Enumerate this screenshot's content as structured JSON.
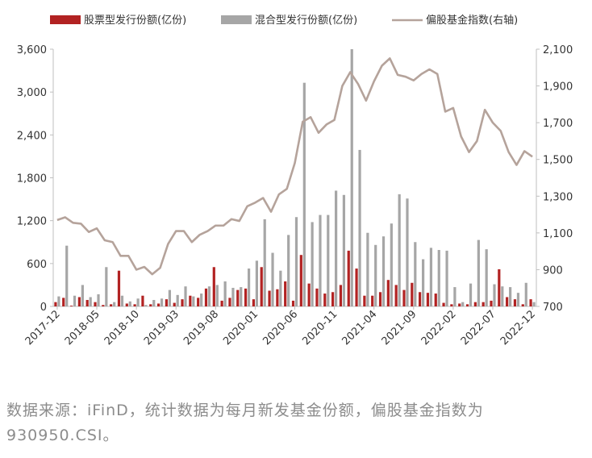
{
  "chart_data": {
    "type": "bar",
    "legend": {
      "position": "top",
      "entries": [
        {
          "name": "股票型发行份额(亿份)",
          "color": "#b22222",
          "kind": "bar"
        },
        {
          "name": "混合型发行份额(亿份)",
          "color": "#a6a6a6",
          "kind": "bar"
        },
        {
          "name": "偏股基金指数(右轴)",
          "color": "#b5a39b",
          "kind": "line"
        }
      ]
    },
    "y_left": {
      "min": 0,
      "max": 3600,
      "ticks": [
        "0",
        "600",
        "1,200",
        "1,800",
        "2,400",
        "3,000",
        "3,600"
      ]
    },
    "y_right": {
      "min": 700,
      "max": 2100,
      "ticks": [
        "700",
        "900",
        "1,100",
        "1,300",
        "1,500",
        "1,700",
        "1,900",
        "2,100"
      ]
    },
    "x_tick_labels": [
      {
        "index": 0,
        "label": "2017-12"
      },
      {
        "index": 5,
        "label": "2018-05"
      },
      {
        "index": 10,
        "label": "2018-10"
      },
      {
        "index": 15,
        "label": "2019-03"
      },
      {
        "index": 20,
        "label": "2019-08"
      },
      {
        "index": 25,
        "label": "2020-01"
      },
      {
        "index": 30,
        "label": "2020-06"
      },
      {
        "index": 35,
        "label": "2020-11"
      },
      {
        "index": 40,
        "label": "2021-04"
      },
      {
        "index": 45,
        "label": "2021-09"
      },
      {
        "index": 50,
        "label": "2022-02"
      },
      {
        "index": 55,
        "label": "2022-07"
      },
      {
        "index": 60,
        "label": "2022-12"
      }
    ],
    "categories": [
      "2017-12",
      "2018-01",
      "2018-02",
      "2018-03",
      "2018-04",
      "2018-05",
      "2018-06",
      "2018-07",
      "2018-08",
      "2018-09",
      "2018-10",
      "2018-11",
      "2018-12",
      "2019-01",
      "2019-02",
      "2019-03",
      "2019-04",
      "2019-05",
      "2019-06",
      "2019-07",
      "2019-08",
      "2019-09",
      "2019-10",
      "2019-11",
      "2019-12",
      "2020-01",
      "2020-02",
      "2020-03",
      "2020-04",
      "2020-05",
      "2020-06",
      "2020-07",
      "2020-08",
      "2020-09",
      "2020-10",
      "2020-11",
      "2020-12",
      "2021-01",
      "2021-02",
      "2021-03",
      "2021-04",
      "2021-05",
      "2021-06",
      "2021-07",
      "2021-08",
      "2021-09",
      "2021-10",
      "2021-11",
      "2021-12",
      "2022-01",
      "2022-02",
      "2022-03",
      "2022-04",
      "2022-05",
      "2022-06",
      "2022-07",
      "2022-08",
      "2022-09",
      "2022-10",
      "2022-11",
      "2022-12"
    ],
    "series": [
      {
        "name": "股票型发行份额(亿份)",
        "axis": "left",
        "values": [
          60,
          120,
          10,
          130,
          90,
          60,
          20,
          30,
          500,
          40,
          30,
          150,
          30,
          40,
          100,
          50,
          100,
          150,
          120,
          250,
          550,
          80,
          120,
          230,
          250,
          100,
          550,
          220,
          240,
          350,
          80,
          720,
          320,
          250,
          180,
          200,
          300,
          780,
          530,
          150,
          150,
          200,
          370,
          300,
          230,
          330,
          200,
          190,
          180,
          50,
          30,
          40,
          30,
          60,
          60,
          80,
          520,
          130,
          100,
          30,
          100
        ]
      },
      {
        "name": "混合型发行份额(亿份)",
        "axis": "left",
        "values": [
          140,
          850,
          150,
          300,
          130,
          170,
          550,
          60,
          150,
          70,
          110,
          20,
          90,
          110,
          230,
          160,
          280,
          140,
          180,
          280,
          300,
          350,
          260,
          270,
          530,
          640,
          1220,
          750,
          500,
          1000,
          1250,
          3130,
          1180,
          1280,
          1280,
          1620,
          1560,
          3600,
          2190,
          1030,
          860,
          980,
          1160,
          1570,
          1510,
          900,
          660,
          820,
          790,
          780,
          270,
          60,
          320,
          930,
          800,
          310,
          280,
          270,
          190,
          330,
          60
        ]
      },
      {
        "name": "偏股基金指数(右轴)",
        "axis": "right",
        "values": [
          1170,
          1185,
          1155,
          1150,
          1105,
          1125,
          1060,
          1050,
          975,
          975,
          900,
          915,
          875,
          910,
          1040,
          1110,
          1110,
          1050,
          1090,
          1110,
          1140,
          1140,
          1175,
          1165,
          1245,
          1265,
          1290,
          1215,
          1310,
          1340,
          1480,
          1705,
          1730,
          1645,
          1690,
          1715,
          1900,
          1975,
          1910,
          1820,
          1925,
          2010,
          2050,
          1960,
          1950,
          1930,
          1965,
          1990,
          1965,
          1760,
          1780,
          1625,
          1540,
          1600,
          1770,
          1700,
          1655,
          1540,
          1470,
          1545,
          1515
        ]
      }
    ]
  },
  "note": {
    "text": "数据来源：iFinD，统计数据为每月新发基金份额，偏股基金指数为930950.CSI。"
  }
}
